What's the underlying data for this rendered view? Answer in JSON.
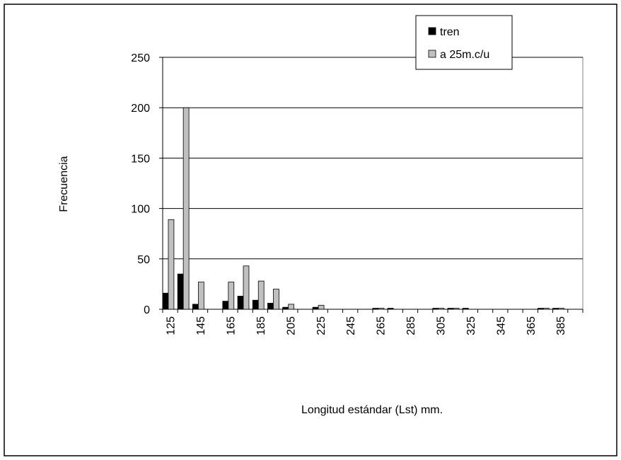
{
  "chart_data": {
    "type": "bar",
    "categories": [
      "125",
      null,
      "145",
      null,
      "165",
      null,
      "185",
      null,
      "205",
      null,
      "225",
      null,
      "245",
      null,
      "265",
      null,
      "285",
      null,
      "305",
      null,
      "325",
      null,
      "345",
      null,
      "365",
      null,
      "385",
      null
    ],
    "series": [
      {
        "name": "tren",
        "color": "#000000",
        "values": [
          16,
          35,
          5,
          0,
          8,
          13,
          9,
          6,
          2,
          0,
          2,
          0,
          0,
          0,
          1,
          1,
          0,
          0,
          1,
          1,
          1,
          0,
          0,
          0,
          0,
          1,
          1,
          0
        ]
      },
      {
        "name": "a 25m.c/u",
        "color": "#c0c0c0",
        "values": [
          89,
          200,
          27,
          0,
          27,
          43,
          28,
          20,
          5,
          0,
          4,
          0,
          0,
          0,
          1,
          0,
          0,
          0,
          1,
          1,
          0,
          0,
          0,
          0,
          0,
          1,
          1,
          0
        ]
      }
    ],
    "x_label": "Longitud estándar (Lst) mm.",
    "y_label": "Frecuencia",
    "ylim": [
      0,
      250
    ],
    "yticks": [
      0,
      50,
      100,
      150,
      200,
      250
    ],
    "grid": true,
    "legend": "top-right"
  }
}
